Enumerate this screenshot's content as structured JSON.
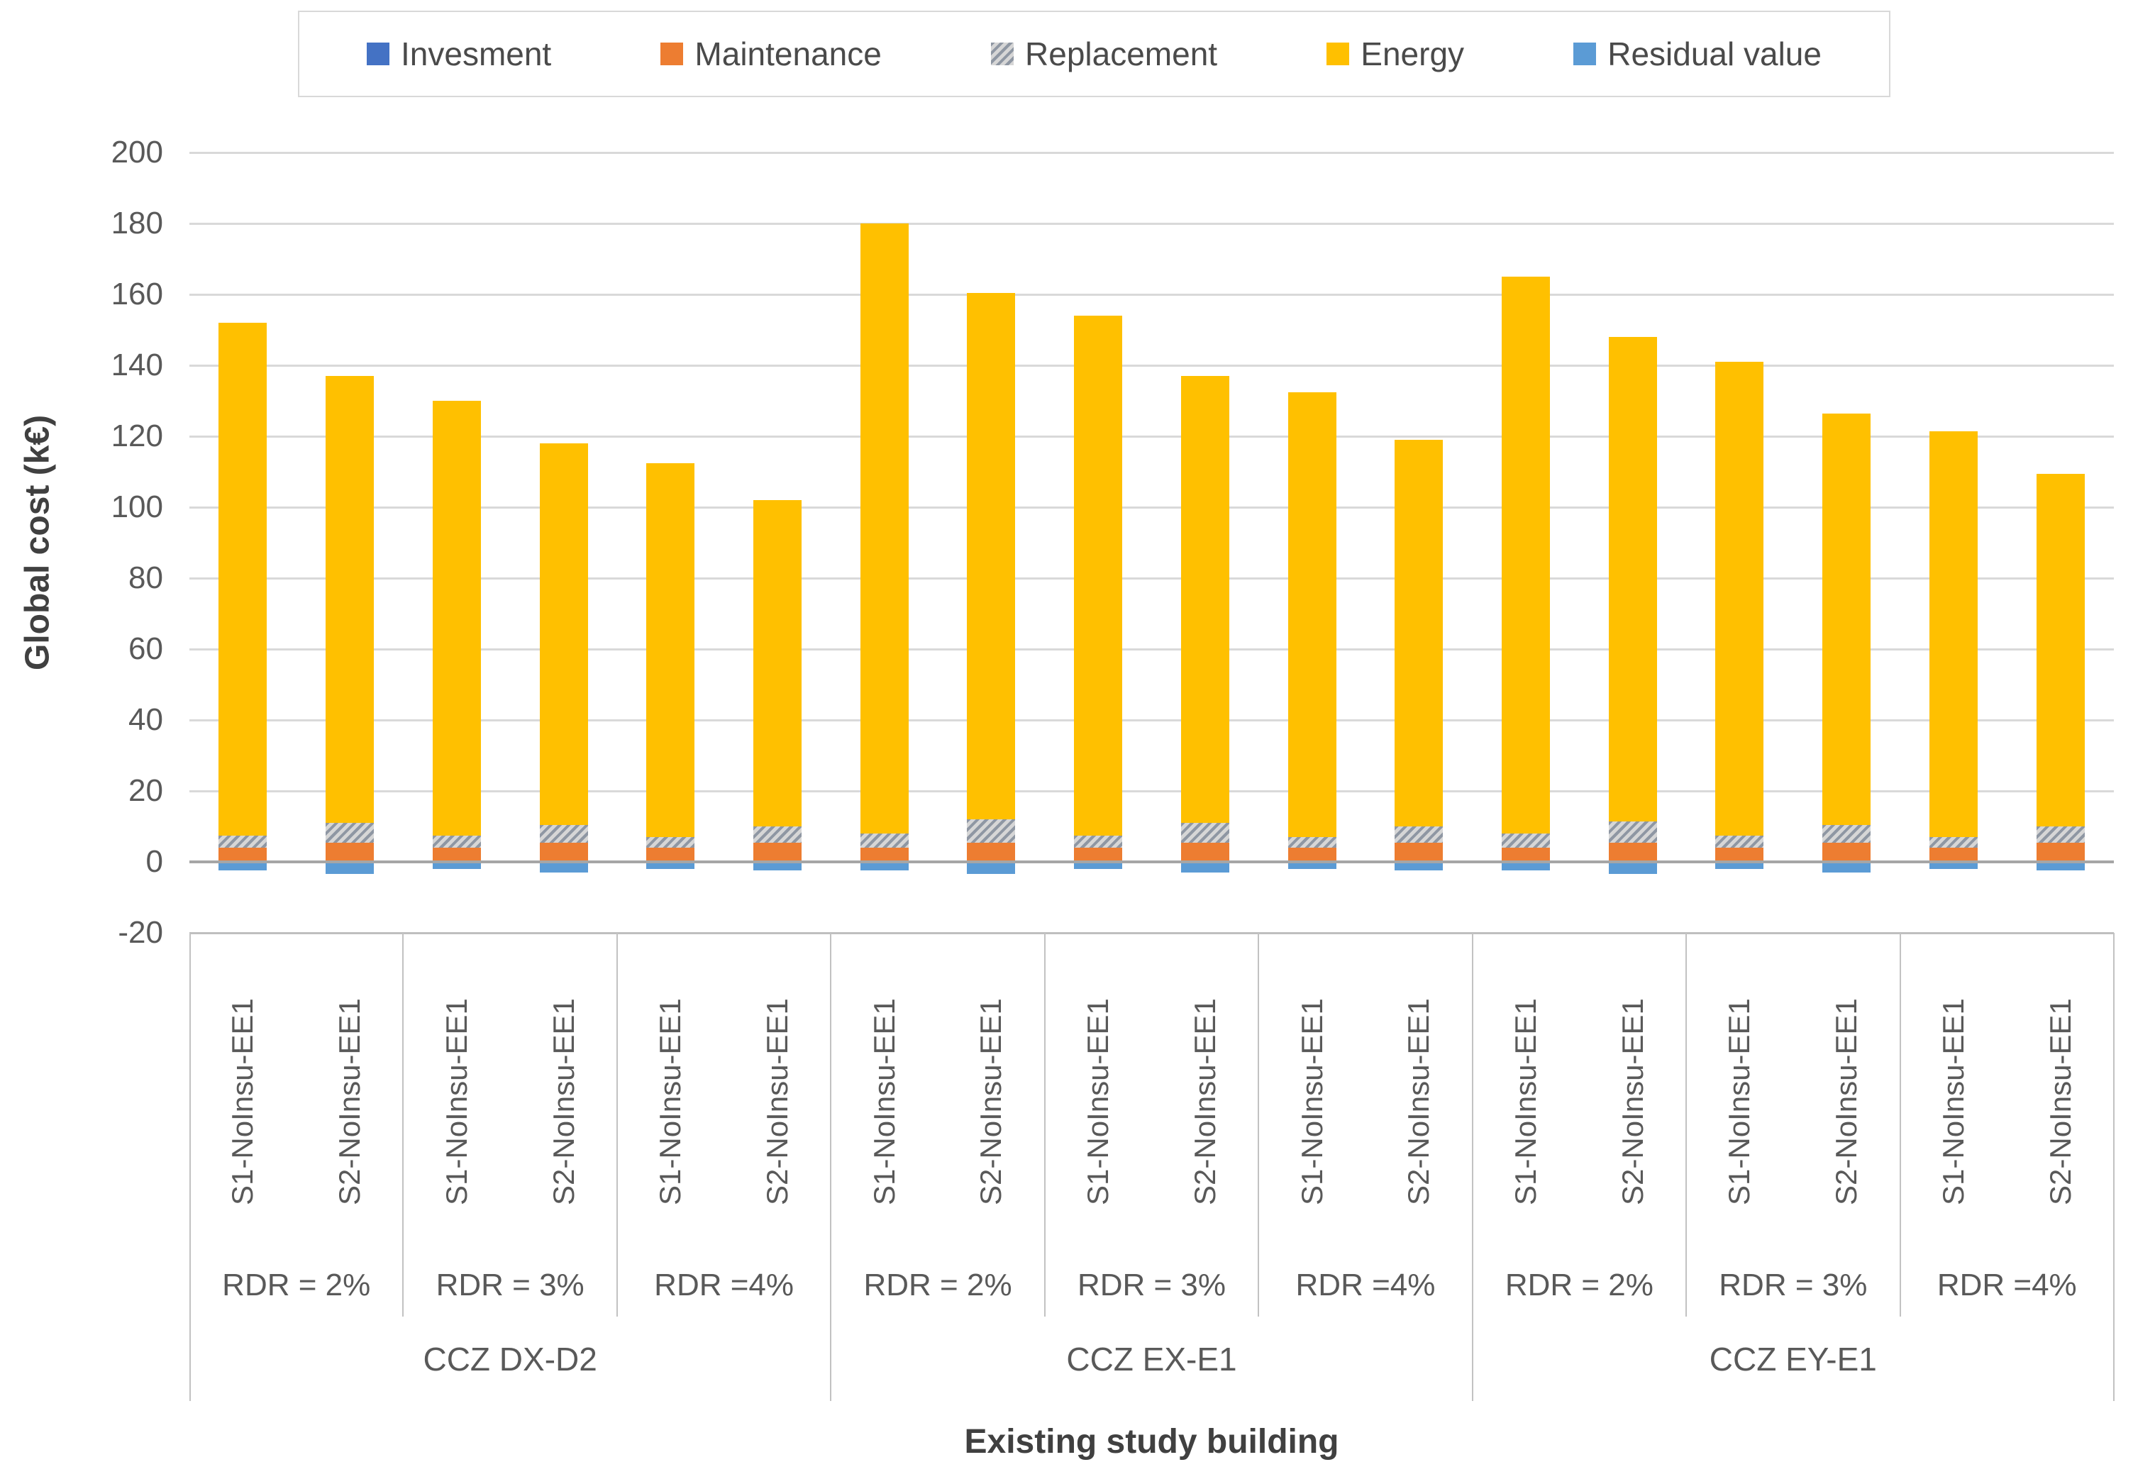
{
  "figure": {
    "y_axis_title": "Global cost (k€)",
    "x_axis_title": "Existing study building"
  },
  "legend": [
    {
      "label": "Invesment",
      "color": "#4472C4",
      "pattern": "solid"
    },
    {
      "label": "Maintenance",
      "color": "#ED7D31",
      "pattern": "solid"
    },
    {
      "label": "Replacement",
      "color": "#A5A5A5",
      "pattern": "hatch"
    },
    {
      "label": "Energy",
      "color": "#FFC000",
      "pattern": "solid"
    },
    {
      "label": "Residual value",
      "color": "#5B9BD5",
      "pattern": "solid"
    }
  ],
  "chart_data": {
    "type": "bar",
    "stacked": true,
    "title": "",
    "ylabel": "Global cost (k€)",
    "xlabel": "Existing study building",
    "ylim": [
      -20,
      200
    ],
    "yticks": [
      200,
      180,
      160,
      140,
      120,
      100,
      80,
      60,
      40,
      20,
      0,
      -20
    ],
    "grid": true,
    "legend_position": "top",
    "series_order": [
      "Invesment",
      "Maintenance",
      "Replacement",
      "Energy",
      "Residual value"
    ],
    "series_colors": {
      "Invesment": "#4472C4",
      "Maintenance": "#ED7D31",
      "Replacement": "hatch",
      "Energy": "#FFC000",
      "Residual value": "#5B9BD5"
    },
    "groups": [
      {
        "label": "CCZ DX-D2",
        "subgroups": [
          {
            "label": "RDR = 2%",
            "bars": [
              {
                "label": "S1-NoInsu-EE1",
                "Invesment": 0.5,
                "Maintenance": 3.5,
                "Replacement": 3.5,
                "Energy": 144.5,
                "Residual value": -2,
                "total": 152
              },
              {
                "label": "S2-NoInsu-EE1",
                "Invesment": 0.5,
                "Maintenance": 5,
                "Replacement": 5.5,
                "Energy": 126,
                "Residual value": -3,
                "total": 137
              }
            ]
          },
          {
            "label": "RDR = 3%",
            "bars": [
              {
                "label": "S1-NoInsu-EE1",
                "Invesment": 0.5,
                "Maintenance": 3.5,
                "Replacement": 3.5,
                "Energy": 122.5,
                "Residual value": -1.5,
                "total": 130
              },
              {
                "label": "S2-NoInsu-EE1",
                "Invesment": 0.5,
                "Maintenance": 5,
                "Replacement": 5,
                "Energy": 107.5,
                "Residual value": -2.5,
                "total": 118
              }
            ]
          },
          {
            "label": "RDR =4%",
            "bars": [
              {
                "label": "S1-NoInsu-EE1",
                "Invesment": 0.5,
                "Maintenance": 3.5,
                "Replacement": 3,
                "Energy": 105.5,
                "Residual value": -1.5,
                "total": 112.5
              },
              {
                "label": "S2-NoInsu-EE1",
                "Invesment": 0.5,
                "Maintenance": 5,
                "Replacement": 4.5,
                "Energy": 92,
                "Residual value": -2,
                "total": 102
              }
            ]
          }
        ]
      },
      {
        "label": "CCZ EX-E1",
        "subgroups": [
          {
            "label": "RDR = 2%",
            "bars": [
              {
                "label": "S1-NoInsu-EE1",
                "Invesment": 0.5,
                "Maintenance": 3.5,
                "Replacement": 4,
                "Energy": 172,
                "Residual value": -2,
                "total": 180
              },
              {
                "label": "S2-NoInsu-EE1",
                "Invesment": 0.5,
                "Maintenance": 5,
                "Replacement": 6.5,
                "Energy": 148.5,
                "Residual value": -3,
                "total": 160.5
              }
            ]
          },
          {
            "label": "RDR = 3%",
            "bars": [
              {
                "label": "S1-NoInsu-EE1",
                "Invesment": 0.5,
                "Maintenance": 3.5,
                "Replacement": 3.5,
                "Energy": 146.5,
                "Residual value": -1.5,
                "total": 154
              },
              {
                "label": "S2-NoInsu-EE1",
                "Invesment": 0.5,
                "Maintenance": 5,
                "Replacement": 5.5,
                "Energy": 126,
                "Residual value": -2.5,
                "total": 137
              }
            ]
          },
          {
            "label": "RDR =4%",
            "bars": [
              {
                "label": "S1-NoInsu-EE1",
                "Invesment": 0.5,
                "Maintenance": 3.5,
                "Replacement": 3,
                "Energy": 125.5,
                "Residual value": -1.5,
                "total": 132.5
              },
              {
                "label": "S2-NoInsu-EE1",
                "Invesment": 0.5,
                "Maintenance": 5,
                "Replacement": 4.5,
                "Energy": 109,
                "Residual value": -2,
                "total": 119
              }
            ]
          }
        ]
      },
      {
        "label": "CCZ EY-E1",
        "subgroups": [
          {
            "label": "RDR = 2%",
            "bars": [
              {
                "label": "S1-NoInsu-EE1",
                "Invesment": 0.5,
                "Maintenance": 3.5,
                "Replacement": 4,
                "Energy": 157,
                "Residual value": -2,
                "total": 165
              },
              {
                "label": "S2-NoInsu-EE1",
                "Invesment": 0.5,
                "Maintenance": 5,
                "Replacement": 6,
                "Energy": 136.5,
                "Residual value": -3,
                "total": 148
              }
            ]
          },
          {
            "label": "RDR = 3%",
            "bars": [
              {
                "label": "S1-NoInsu-EE1",
                "Invesment": 0.5,
                "Maintenance": 3.5,
                "Replacement": 3.5,
                "Energy": 133.5,
                "Residual value": -1.5,
                "total": 141
              },
              {
                "label": "S2-NoInsu-EE1",
                "Invesment": 0.5,
                "Maintenance": 5,
                "Replacement": 5,
                "Energy": 116,
                "Residual value": -2.5,
                "total": 126.5
              }
            ]
          },
          {
            "label": "RDR =4%",
            "bars": [
              {
                "label": "S1-NoInsu-EE1",
                "Invesment": 0.5,
                "Maintenance": 3.5,
                "Replacement": 3,
                "Energy": 114.5,
                "Residual value": -1.5,
                "total": 121.5
              },
              {
                "label": "S2-NoInsu-EE1",
                "Invesment": 0.5,
                "Maintenance": 5,
                "Replacement": 4.5,
                "Energy": 99.5,
                "Residual value": -2,
                "total": 109.5
              }
            ]
          }
        ]
      }
    ]
  }
}
